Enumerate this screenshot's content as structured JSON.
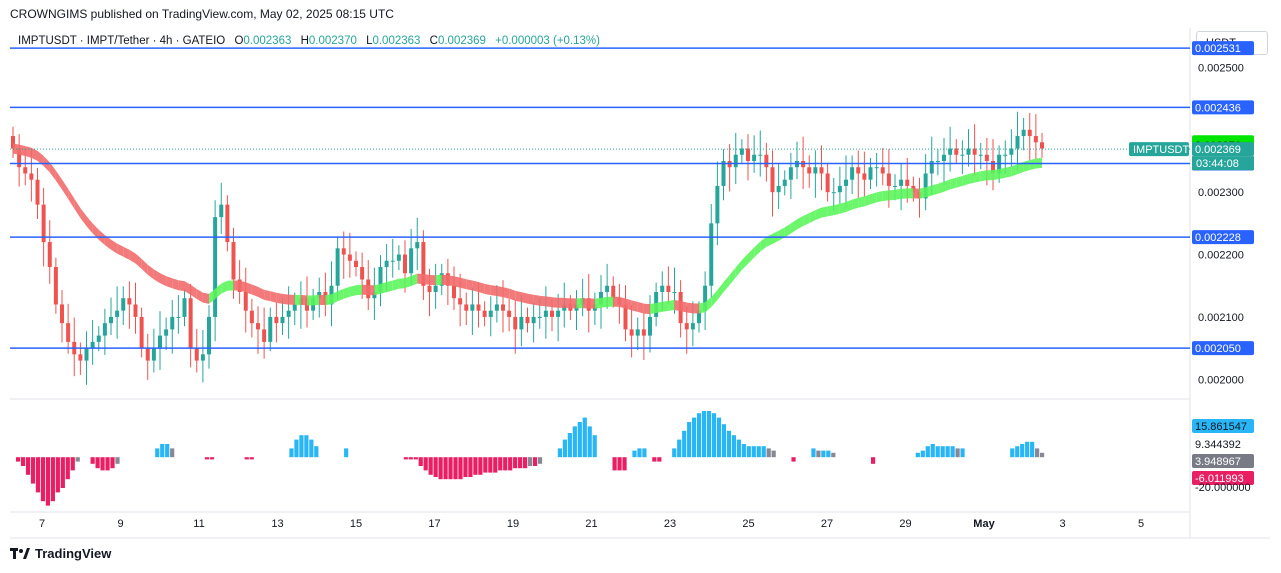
{
  "publisher": "CROWNGIMS published on TradingView.com, May 02, 2025 08:15 UTC",
  "legend": {
    "symbol": "IMPTUSDT · IMPT/Tether · 4h · GATEIO",
    "open_label": "O",
    "open": "0.002363",
    "high_label": "H",
    "high": "0.002370",
    "low_label": "L",
    "low": "0.002363",
    "close_label": "C",
    "close": "0.002369",
    "change": "+0.000003 (+0.13%)"
  },
  "unit": "USDT",
  "logo_text": "TradingView",
  "colors": {
    "up": "#26a69a",
    "down": "#ef5350",
    "level_line": "#2962ff",
    "ribbon_up": "#5cf55c",
    "ribbon_down": "#f26b6b",
    "hist_cyan": "#29b6f6",
    "hist_gray": "#868993",
    "hist_magenta": "#e91e63"
  },
  "chart_data": [
    {
      "type": "candlestick",
      "yaxis_ticks": [
        "0.002500",
        "0.002300",
        "0.002200",
        "0.002100",
        "0.002000"
      ],
      "xaxis_ticks": [
        "7",
        "9",
        "11",
        "13",
        "15",
        "17",
        "19",
        "21",
        "23",
        "25",
        "27",
        "29",
        "May",
        "3",
        "5"
      ],
      "ylim": [
        0.00197,
        0.00256
      ],
      "horizontal_levels": [
        "0.002531",
        "0.002436",
        "0.002346",
        "0.002228",
        "0.002050"
      ],
      "price_labels": [
        {
          "value": "0.002380",
          "color": "#00e600",
          "text_color": "#131722"
        },
        {
          "value": "0.002376",
          "color": "#00e600",
          "text_color": "#131722"
        },
        {
          "value": "0.002369",
          "color": "#26a69a",
          "text_color": "#ffffff"
        }
      ],
      "countdown": "03:44:08",
      "symbol_tag": "IMPTUSDT",
      "last_price": 0.002369,
      "close_series": [
        0.00237,
        0.00234,
        0.00233,
        0.00232,
        0.00228,
        0.00222,
        0.00218,
        0.00212,
        0.00209,
        0.00206,
        0.00204,
        0.00203,
        0.00205,
        0.00206,
        0.00207,
        0.00209,
        0.0021,
        0.00211,
        0.00213,
        0.00212,
        0.0021,
        0.00205,
        0.00203,
        0.00205,
        0.00207,
        0.00208,
        0.0021,
        0.0021,
        0.00213,
        0.00205,
        0.00203,
        0.00204,
        0.0021,
        0.00226,
        0.00228,
        0.00222,
        0.00216,
        0.00214,
        0.00211,
        0.00209,
        0.00208,
        0.00206,
        0.0021,
        0.00209,
        0.0021,
        0.00211,
        0.00212,
        0.00213,
        0.00211,
        0.00213,
        0.00214,
        0.00212,
        0.00215,
        0.00221,
        0.0022,
        0.00219,
        0.00218,
        0.00216,
        0.00213,
        0.00214,
        0.00218,
        0.00219,
        0.00219,
        0.0022,
        0.00217,
        0.00221,
        0.00222,
        0.00215,
        0.00214,
        0.00215,
        0.00217,
        0.00215,
        0.00213,
        0.00212,
        0.00211,
        0.00212,
        0.00211,
        0.0021,
        0.00211,
        0.00212,
        0.00211,
        0.0021,
        0.00208,
        0.0021,
        0.00209,
        0.0021,
        0.0021,
        0.00211,
        0.0021,
        0.00211,
        0.00212,
        0.00211,
        0.00212,
        0.00213,
        0.00211,
        0.00212,
        0.00214,
        0.00215,
        0.00213,
        0.00212,
        0.00208,
        0.00207,
        0.00208,
        0.00207,
        0.0021,
        0.00214,
        0.00215,
        0.00214,
        0.00214,
        0.00209,
        0.00208,
        0.00209,
        0.00211,
        0.00215,
        0.00225,
        0.00231,
        0.00235,
        0.00234,
        0.00236,
        0.00237,
        0.00235,
        0.00236,
        0.00236,
        0.00234,
        0.0023,
        0.00231,
        0.00232,
        0.00234,
        0.00235,
        0.00234,
        0.00233,
        0.00234,
        0.00233,
        0.0023,
        0.0023,
        0.00231,
        0.00232,
        0.00234,
        0.00233,
        0.00232,
        0.00234,
        0.00234,
        0.00233,
        0.00231,
        0.00231,
        0.00232,
        0.00231,
        0.0023,
        0.00229,
        0.00233,
        0.00235,
        0.00235,
        0.00236,
        0.00237,
        0.00236,
        0.00236,
        0.00237,
        0.00236,
        0.00236,
        0.00235,
        0.00233,
        0.00236,
        0.00236,
        0.00237,
        0.00239,
        0.0024,
        0.00239,
        0.00238,
        0.00237
      ],
      "indicator": {
        "type": "histogram",
        "yaxis_labels": [
          {
            "value": "15.861547",
            "color": "#29b6f6",
            "text_color": "#131722"
          },
          {
            "value": "9.344392",
            "color": "#ffffff",
            "text_color": "#131722"
          },
          {
            "value": "3.948967",
            "color": "#787b86",
            "text_color": "#ffffff"
          },
          {
            "value": "-6.011993",
            "color": "#e91e63",
            "text_color": "#ffffff"
          },
          {
            "value": "-20.000000",
            "color": "#ffffff",
            "text_color": "#131722"
          }
        ],
        "ylim": [
          -24,
          26
        ],
        "values": [
          0,
          -2,
          -4,
          -8,
          -12,
          -16,
          -20,
          -22,
          -20,
          -16,
          -14,
          -10,
          -6,
          -2,
          0,
          0,
          -3,
          -5,
          -6,
          -6,
          -5,
          -3,
          0,
          0,
          0,
          0,
          0,
          0,
          0,
          4,
          6,
          6,
          4,
          0,
          0,
          0,
          0,
          0,
          0,
          -1,
          -1,
          0,
          0,
          0,
          0,
          0,
          0,
          -1,
          -1,
          0,
          0,
          0,
          0,
          0,
          0,
          0,
          4,
          8,
          10,
          10,
          8,
          5,
          0,
          0,
          0,
          0,
          0,
          4,
          0,
          0,
          0,
          0,
          0,
          0,
          0,
          0,
          0,
          0,
          0,
          -1,
          -1,
          -1,
          -4,
          -6,
          -8,
          -9,
          -10,
          -10,
          -10,
          -10,
          -10,
          -9,
          -9,
          -8,
          -8,
          -7,
          -7,
          -7,
          -6,
          -6,
          -6,
          -5,
          -5,
          -5,
          -4,
          -4,
          -3,
          0,
          0,
          0,
          4,
          8,
          11,
          14,
          16,
          18,
          14,
          10,
          0,
          0,
          0,
          -6,
          -6,
          -6,
          0,
          3,
          4,
          4,
          0,
          -2,
          -2,
          0,
          0,
          4,
          8,
          12,
          16,
          18,
          20,
          21,
          21,
          20,
          18,
          15,
          12,
          10,
          8,
          6,
          5,
          5,
          5,
          5,
          4,
          3,
          0,
          0,
          0,
          -2,
          0,
          0,
          0,
          4,
          3,
          3,
          3,
          2,
          0,
          0,
          0,
          0,
          0,
          0,
          0,
          -3,
          0,
          0,
          0,
          0,
          0,
          0,
          0,
          0,
          2,
          3,
          5,
          6,
          5,
          5,
          5,
          5,
          4,
          4,
          0,
          0,
          0,
          0,
          0,
          0,
          0,
          0,
          0,
          4,
          5,
          6,
          7,
          7,
          4,
          2
        ]
      }
    }
  ]
}
